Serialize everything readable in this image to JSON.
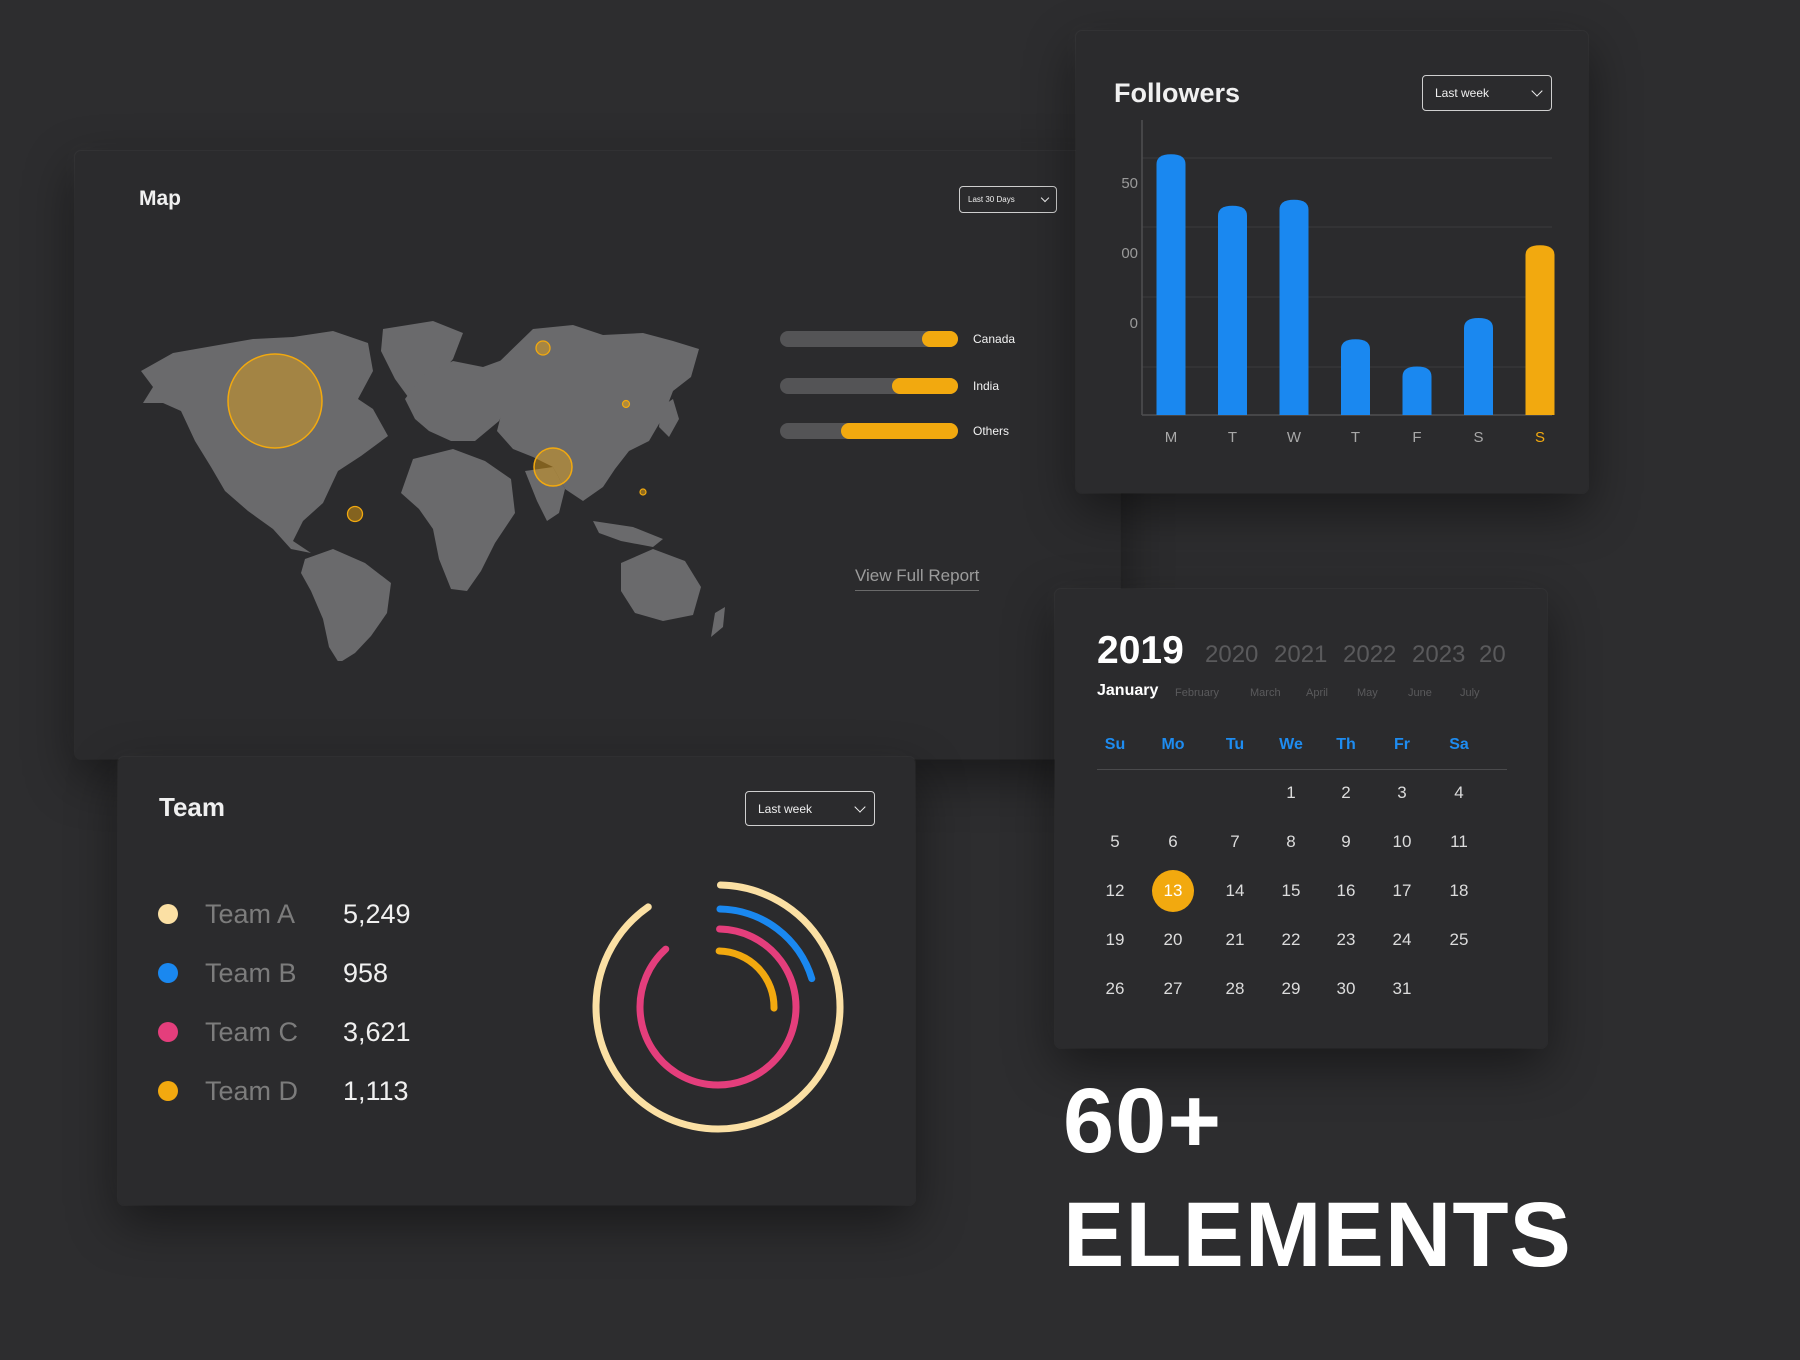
{
  "map": {
    "title": "Map",
    "dropdown": "Last 30 Days",
    "bars": [
      {
        "label": "Canada",
        "fraction": 0.2
      },
      {
        "label": "India",
        "fraction": 0.37
      },
      {
        "label": "Others",
        "fraction": 0.66
      }
    ],
    "view_report": "View Full Report",
    "colors": {
      "land": "#6a6a6c",
      "accent": "#f2a90f"
    }
  },
  "followers": {
    "title": "Followers",
    "dropdown": "Last week",
    "y_tick_labels": [
      "50",
      "00",
      "0"
    ],
    "colors": {
      "bar": "#1a88f0",
      "highlight": "#f2a90f"
    }
  },
  "chart_data": {
    "type": "bar",
    "title": "Followers",
    "categories": [
      "M",
      "T",
      "W",
      "T",
      "F",
      "S",
      "S"
    ],
    "values": [
      86,
      69,
      71,
      25,
      16,
      32,
      56
    ],
    "highlight_index": 6,
    "ylim": [
      0,
      94
    ],
    "grid": true
  },
  "team": {
    "title": "Team",
    "dropdown": "Last week",
    "rows": [
      {
        "name": "Team A",
        "value": "5,249",
        "color": "#fbe0a4",
        "ring": 0.9
      },
      {
        "name": "Team B",
        "value": "958",
        "color": "#1a88f0",
        "ring": 0.2
      },
      {
        "name": "Team C",
        "value": "3,621",
        "color": "#e43e7c",
        "ring": 0.88
      },
      {
        "name": "Team D",
        "value": "1,113",
        "color": "#f2a90f",
        "ring": 0.25
      }
    ]
  },
  "calendar": {
    "years": [
      "2019",
      "2020",
      "2021",
      "2022",
      "2023",
      "20"
    ],
    "months": [
      "January",
      "February",
      "March",
      "April",
      "May",
      "June",
      "July"
    ],
    "weekdays": [
      "Su",
      "Mo",
      "Tu",
      "We",
      "Th",
      "Fr",
      "Sa"
    ],
    "first_weekday": 3,
    "days_in_month": 31,
    "selected_day": 13,
    "accent": "#f2a90f",
    "weekday_color": "#1e8cf0"
  },
  "headline": {
    "line1": "60+",
    "line2": "ELEMENTS"
  }
}
